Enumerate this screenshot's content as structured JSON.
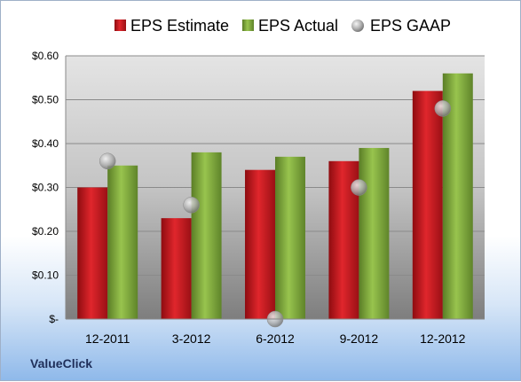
{
  "brand": "ValueClick",
  "chart_data": {
    "type": "bar",
    "categories": [
      "12-2011",
      "3-2012",
      "6-2012",
      "9-2012",
      "12-2012"
    ],
    "series": [
      {
        "name": "EPS Estimate",
        "kind": "bar",
        "color": "#c0141b",
        "values": [
          0.3,
          0.23,
          0.34,
          0.36,
          0.52
        ]
      },
      {
        "name": "EPS Actual",
        "kind": "bar",
        "color": "#7aa63a",
        "values": [
          0.35,
          0.38,
          0.37,
          0.39,
          0.56
        ]
      },
      {
        "name": "EPS GAAP",
        "kind": "marker",
        "color": "#a8a8a8",
        "values": [
          0.36,
          0.26,
          0.0,
          0.3,
          0.48
        ]
      }
    ],
    "yticks": [
      "$-",
      "$0.10",
      "$0.20",
      "$0.30",
      "$0.40",
      "$0.50",
      "$0.60"
    ],
    "ylim": [
      0,
      0.6
    ],
    "grid": true,
    "legend_position": "top"
  }
}
